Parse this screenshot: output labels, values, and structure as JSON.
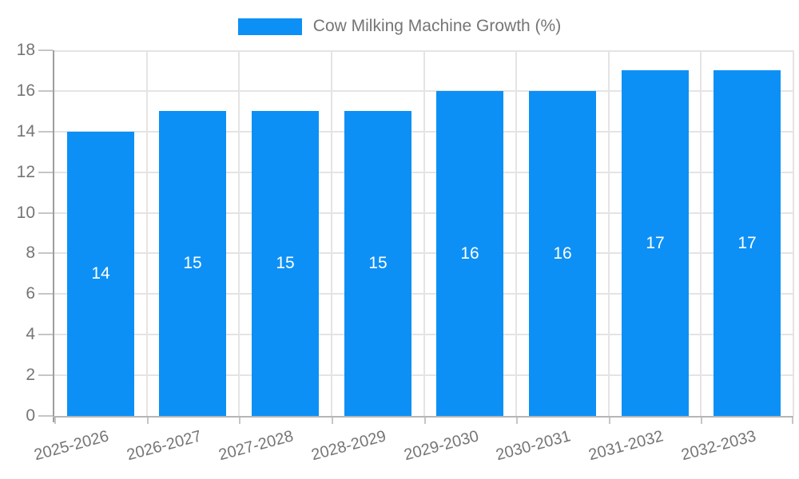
{
  "legend": {
    "label": "Cow Milking Machine Growth (%)"
  },
  "chart_data": {
    "type": "bar",
    "title": "Cow Milking Machine Growth (%)",
    "categories": [
      "2025-2026",
      "2026-2027",
      "2027-2028",
      "2028-2029",
      "2029-2030",
      "2030-2031",
      "2031-2032",
      "2032-2033"
    ],
    "values": [
      14,
      15,
      15,
      15,
      16,
      16,
      17,
      17
    ],
    "bar_labels": [
      "14",
      "15",
      "15",
      "15",
      "16",
      "16",
      "17",
      "17"
    ],
    "xlabel": "",
    "ylabel": "",
    "ylim": [
      0,
      18
    ],
    "yticks": [
      0,
      2,
      4,
      6,
      8,
      10,
      12,
      14,
      16,
      18
    ],
    "grid": true,
    "legend_position": "top-center",
    "colors": {
      "bar": "#0d90f5",
      "bar_label": "#ffffff",
      "axis_text": "#757575",
      "grid_line": "#e4e4e4",
      "axis_line": "#9e9e9e"
    }
  }
}
